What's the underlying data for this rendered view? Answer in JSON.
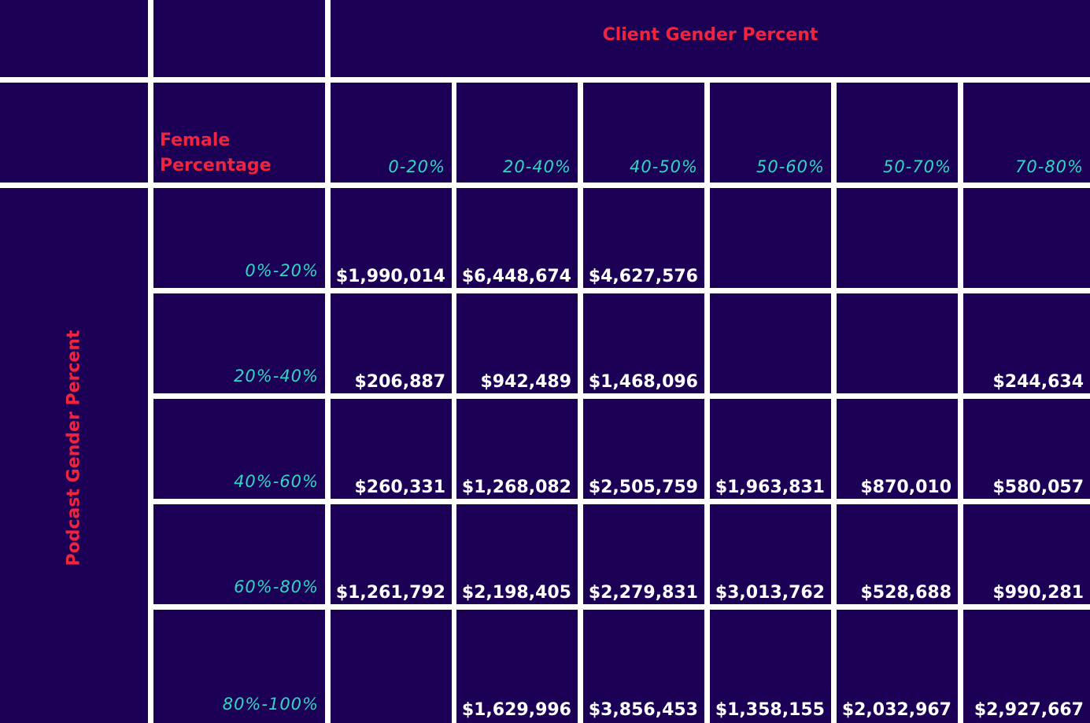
{
  "chart_data": {
    "type": "table",
    "column_group_title": "Client Gender Percent",
    "row_group_title": "Podcast Gender Percent",
    "corner_label": "Female Percentage",
    "columns": [
      "0-20%",
      "20-40%",
      "40-50%",
      "50-60%",
      "50-70%",
      "70-80%"
    ],
    "rows": [
      {
        "label": "0%-20%",
        "values": [
          "$1,990,014",
          "$6,448,674",
          "$4,627,576",
          "",
          "",
          ""
        ]
      },
      {
        "label": "20%-40%",
        "values": [
          "$206,887",
          "$942,489",
          "$1,468,096",
          "",
          "",
          "$244,634"
        ]
      },
      {
        "label": "40%-60%",
        "values": [
          "$260,331",
          "$1,268,082",
          "$2,505,759",
          "$1,963,831",
          "$870,010",
          "$580,057"
        ]
      },
      {
        "label": "60%-80%",
        "values": [
          "$1,261,792",
          "$2,198,405",
          "$2,279,831",
          "$3,013,762",
          "$528,688",
          "$990,281"
        ]
      },
      {
        "label": "80%-100%",
        "values": [
          "",
          "$1,629,996",
          "$3,856,453",
          "$1,358,155",
          "$2,032,967",
          "$2,927,667"
        ]
      }
    ]
  },
  "colors": {
    "cell_bg": "#1c0056",
    "grid": "#ffffff",
    "title": "#f0243c",
    "label": "#2fd6c4",
    "value": "#ffffff"
  }
}
